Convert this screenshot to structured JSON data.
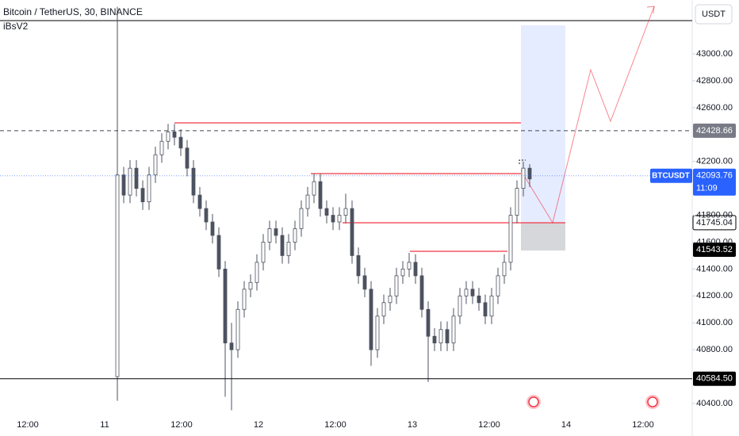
{
  "chart_data": {
    "type": "candlestick",
    "title": "Bitcoin / TetherUS, 30, BINANCE",
    "indicator": "iBsV2",
    "currency": "USDT",
    "symbol": "BTCUSDT",
    "countdown": "11:09",
    "up_color": "#ffffff",
    "down_color": "#4d5260",
    "ylim": [
      40300,
      43350
    ],
    "yticks": [
      {
        "value": 43000,
        "label": "43000.00"
      },
      {
        "value": 42800,
        "label": "42800.00"
      },
      {
        "value": 42600,
        "label": "42600.00"
      },
      {
        "value": 42200,
        "label": "42200.00"
      },
      {
        "value": 41800,
        "label": "41800.00"
      },
      {
        "value": 41600,
        "label": "41600.00"
      },
      {
        "value": 41400,
        "label": "41400.00"
      },
      {
        "value": 41200,
        "label": "41200.00"
      },
      {
        "value": 41000,
        "label": "41000.00"
      },
      {
        "value": 40800,
        "label": "40800.00"
      },
      {
        "value": 40400,
        "label": "40400.00"
      }
    ],
    "x_labels": [
      "12:00",
      "11",
      "12:00",
      "12",
      "12:00",
      "13",
      "12:00",
      "14",
      "12:00"
    ],
    "price_tags": [
      {
        "value": 42428.66,
        "color": "#787b86",
        "line": "dashed"
      },
      {
        "value": 42093.76,
        "color": "#2962ff",
        "line": "dotted"
      },
      {
        "value": 41745.04,
        "color": "#ffffff",
        "line": "none"
      },
      {
        "value": 41543.52,
        "color": "#000000",
        "line": "none"
      },
      {
        "value": 40584.5,
        "label": "40584.50",
        "color": "#000000",
        "line": "solid"
      }
    ],
    "candles": [
      [
        40600,
        43350,
        40420,
        42100
      ],
      [
        42100,
        42160,
        41890,
        41950
      ],
      [
        41950,
        42210,
        41890,
        42150
      ],
      [
        42150,
        42210,
        41940,
        42000
      ],
      [
        42000,
        42060,
        41840,
        41900
      ],
      [
        41900,
        42160,
        41840,
        42100
      ],
      [
        42100,
        42310,
        42040,
        42250
      ],
      [
        42250,
        42410,
        42190,
        42350
      ],
      [
        42350,
        42480,
        42290,
        42420
      ],
      [
        42420,
        42480,
        42320,
        42380
      ],
      [
        42380,
        42440,
        42240,
        42300
      ],
      [
        42300,
        42360,
        42090,
        42150
      ],
      [
        42150,
        42210,
        41890,
        41950
      ],
      [
        41950,
        42010,
        41790,
        41850
      ],
      [
        41850,
        41910,
        41690,
        41750
      ],
      [
        41750,
        41810,
        41590,
        41650
      ],
      [
        41650,
        41710,
        41340,
        41400
      ],
      [
        41400,
        41460,
        40450,
        40850
      ],
      [
        40850,
        41000,
        40350,
        40800
      ],
      [
        40800,
        41160,
        40740,
        41100
      ],
      [
        41100,
        41310,
        41040,
        41250
      ],
      [
        41250,
        41360,
        41190,
        41300
      ],
      [
        41300,
        41510,
        41240,
        41450
      ],
      [
        41450,
        41660,
        41390,
        41600
      ],
      [
        41600,
        41760,
        41540,
        41700
      ],
      [
        41700,
        41760,
        41590,
        41650
      ],
      [
        41650,
        41710,
        41440,
        41500
      ],
      [
        41500,
        41660,
        41440,
        41600
      ],
      [
        41600,
        41760,
        41540,
        41700
      ],
      [
        41700,
        41910,
        41640,
        41850
      ],
      [
        41850,
        42010,
        41790,
        41950
      ],
      [
        41950,
        42110,
        41890,
        42050
      ],
      [
        42050,
        42110,
        41790,
        41850
      ],
      [
        41850,
        41910,
        41740,
        41800
      ],
      [
        41800,
        41860,
        41690,
        41750
      ],
      [
        41750,
        41860,
        41690,
        41800
      ],
      [
        41800,
        41960,
        41740,
        41850
      ],
      [
        41850,
        41910,
        41440,
        41500
      ],
      [
        41500,
        41560,
        41290,
        41350
      ],
      [
        41350,
        41410,
        41190,
        41250
      ],
      [
        41250,
        41310,
        40680,
        40800
      ],
      [
        40800,
        41110,
        40740,
        41050
      ],
      [
        41050,
        41210,
        40990,
        41150
      ],
      [
        41150,
        41260,
        41090,
        41200
      ],
      [
        41200,
        41410,
        41140,
        41350
      ],
      [
        41350,
        41460,
        41290,
        41400
      ],
      [
        41400,
        41520,
        41340,
        41450
      ],
      [
        41450,
        41510,
        41290,
        41350
      ],
      [
        41350,
        41410,
        41040,
        41100
      ],
      [
        41100,
        41160,
        40560,
        40900
      ],
      [
        40900,
        40960,
        40790,
        40850
      ],
      [
        40850,
        41010,
        40790,
        40950
      ],
      [
        40950,
        41010,
        40790,
        40850
      ],
      [
        40850,
        41110,
        40790,
        41050
      ],
      [
        41050,
        41260,
        40990,
        41200
      ],
      [
        41200,
        41310,
        41140,
        41250
      ],
      [
        41250,
        41310,
        41140,
        41200
      ],
      [
        41200,
        41260,
        41090,
        41150
      ],
      [
        41150,
        41210,
        40990,
        41050
      ],
      [
        41050,
        41260,
        40990,
        41200
      ],
      [
        41200,
        41410,
        41140,
        41350
      ],
      [
        41350,
        41510,
        41290,
        41450
      ],
      [
        41450,
        41860,
        41390,
        41800
      ],
      [
        41800,
        42060,
        41740,
        42000
      ],
      [
        42000,
        42200,
        41940,
        42150
      ],
      [
        42150,
        42180,
        42010,
        42070
      ]
    ]
  }
}
